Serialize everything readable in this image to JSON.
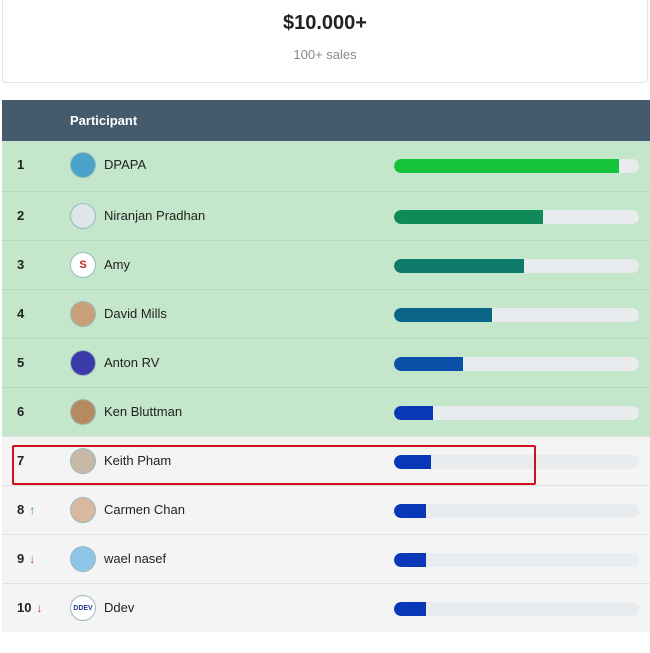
{
  "prize": {
    "amount": "$10.000+",
    "subtitle": "100+ sales"
  },
  "table": {
    "header": {
      "participant": "Participant"
    },
    "rows": [
      {
        "rank": "1",
        "name": "DPAPA",
        "progress": 0.92,
        "color": "#13c43a",
        "trend": "",
        "avatar_color": "#4aa3c8"
      },
      {
        "rank": "2",
        "name": "Niranjan Pradhan",
        "progress": 0.61,
        "color": "#0f8a58",
        "trend": "",
        "avatar_color": "#dfe6ea"
      },
      {
        "rank": "3",
        "name": "Amy",
        "progress": 0.53,
        "color": "#0e7a6a",
        "trend": "",
        "avatar_color": "#ffffff"
      },
      {
        "rank": "4",
        "name": "David Mills",
        "progress": 0.4,
        "color": "#0b6587",
        "trend": "",
        "avatar_color": "#c9a07a"
      },
      {
        "rank": "5",
        "name": "Anton RV",
        "progress": 0.28,
        "color": "#0a50a8",
        "trend": "",
        "avatar_color": "#3a3aa8"
      },
      {
        "rank": "6",
        "name": "Ken Bluttman",
        "progress": 0.16,
        "color": "#0838b8",
        "trend": "",
        "avatar_color": "#b58a60"
      },
      {
        "rank": "7",
        "name": "Keith Pham",
        "progress": 0.15,
        "color": "#0838b8",
        "trend": "",
        "avatar_color": "#c8b8a6"
      },
      {
        "rank": "8",
        "name": "Carmen Chan",
        "progress": 0.13,
        "color": "#0838b8",
        "trend": "up",
        "avatar_color": "#d9b7a1"
      },
      {
        "rank": "9",
        "name": "wael nasef",
        "progress": 0.13,
        "color": "#0838b8",
        "trend": "down",
        "avatar_color": "#8ec5e8"
      },
      {
        "rank": "10",
        "name": "Ddev",
        "progress": 0.13,
        "color": "#0838b8",
        "trend": "down",
        "avatar_color": "#ffffff"
      }
    ]
  },
  "icons": {
    "up": "arrow-up-icon",
    "down": "arrow-down-icon"
  },
  "avatar_glyphs": [
    "",
    "",
    "S",
    "",
    "",
    "",
    "",
    "",
    "",
    "DDEV"
  ]
}
